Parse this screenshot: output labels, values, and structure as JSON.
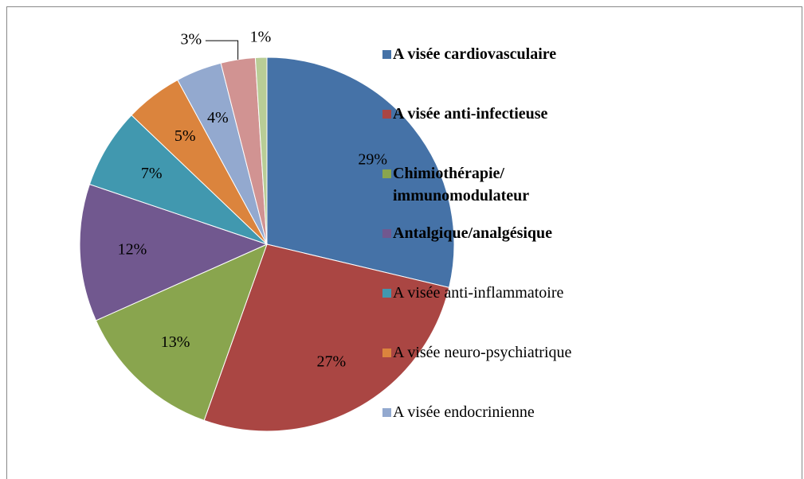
{
  "chart_data": {
    "type": "pie",
    "categories": [
      "A visée cardiovasculaire",
      "A visée anti-infectieuse",
      "Chimiothérapie/\nimmunomodulateur",
      "Antalgique/analgésique",
      "A visée anti-inflammatoire",
      "A visée neuro-psychiatrique",
      "A visée endocrinienne",
      null,
      null
    ],
    "values": [
      29,
      27,
      13,
      12,
      7,
      5,
      4,
      3,
      1
    ],
    "value_labels": [
      "29%",
      "27%",
      "13%",
      "12%",
      "7%",
      "5%",
      "4%",
      "3%",
      "1%"
    ],
    "colors": [
      "#4572a7",
      "#aa4643",
      "#89a54e",
      "#71588f",
      "#4198af",
      "#db843d",
      "#93a9cf",
      "#d19392",
      "#b9cd96"
    ],
    "legend_bold": [
      true,
      true,
      true,
      true,
      false,
      false,
      false
    ]
  }
}
